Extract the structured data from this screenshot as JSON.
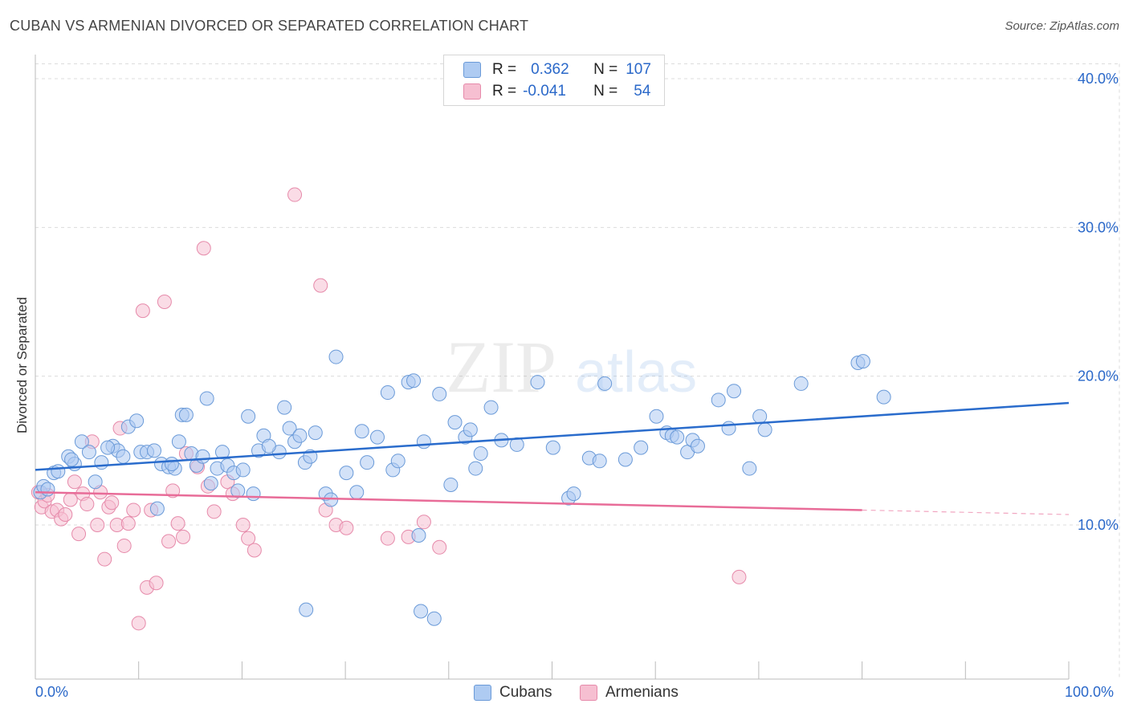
{
  "header": {
    "title": "CUBAN VS ARMENIAN DIVORCED OR SEPARATED CORRELATION CHART",
    "source": "Source: ZipAtlas.com"
  },
  "watermark": {
    "zip": "ZIP",
    "atlas": "atlas"
  },
  "legend": {
    "rows": [
      {
        "r_label": "R =",
        "r_value": "0.362",
        "n_label": "N =",
        "n_value": "107"
      },
      {
        "r_label": "R =",
        "r_value": "-0.041",
        "n_label": "N =",
        "n_value": "54"
      }
    ]
  },
  "bottom_legend": {
    "cubans": "Cubans",
    "armenians": "Armenians"
  },
  "axis_text": {
    "x_min": "0.0%",
    "x_max": "100.0%"
  },
  "colors": {
    "cuban_fill": "#aecbf2",
    "cuban_stroke": "#6a9ad8",
    "cuban_line": "#2a6ccc",
    "armenian_fill": "#f6bfd1",
    "armenian_stroke": "#e68aaa",
    "armenian_line": "#e86c98",
    "tick_label": "#2a68c9",
    "grid": "#dcdcdc"
  },
  "chart_data": {
    "type": "scatter",
    "title": "CUBAN VS ARMENIAN DIVORCED OR SEPARATED CORRELATION CHART",
    "xlabel": "",
    "ylabel": "Divorced or Separated",
    "xlim": [
      0,
      100
    ],
    "ylim": [
      0,
      41
    ],
    "y_ticks": [
      10,
      20,
      30,
      40
    ],
    "y_tick_labels": [
      "10.0%",
      "20.0%",
      "30.0%",
      "40.0%"
    ],
    "grid": true,
    "legend_position": "top-center",
    "series": [
      {
        "name": "Cubans",
        "r": 0.362,
        "n": 107,
        "trend": {
          "x": [
            0,
            100
          ],
          "y": [
            13.7,
            18.2
          ]
        },
        "points": [
          [
            0.5,
            12.2
          ],
          [
            0.8,
            12.6
          ],
          [
            1.2,
            12.4
          ],
          [
            1.8,
            13.5
          ],
          [
            2.2,
            13.6
          ],
          [
            3.2,
            14.6
          ],
          [
            3.8,
            14.1
          ],
          [
            4.5,
            15.6
          ],
          [
            5.2,
            14.9
          ],
          [
            5.8,
            12.9
          ],
          [
            6.4,
            14.2
          ],
          [
            7.5,
            15.3
          ],
          [
            8.0,
            15.0
          ],
          [
            8.5,
            14.6
          ],
          [
            9.0,
            16.6
          ],
          [
            9.8,
            17.0
          ],
          [
            10.2,
            14.9
          ],
          [
            10.8,
            14.9
          ],
          [
            11.5,
            15.0
          ],
          [
            11.8,
            11.1
          ],
          [
            12.2,
            14.1
          ],
          [
            12.9,
            13.9
          ],
          [
            13.5,
            13.8
          ],
          [
            13.9,
            15.6
          ],
          [
            14.2,
            17.4
          ],
          [
            14.6,
            17.4
          ],
          [
            15.1,
            14.8
          ],
          [
            15.6,
            14.0
          ],
          [
            16.2,
            14.6
          ],
          [
            16.6,
            18.5
          ],
          [
            17.0,
            12.8
          ],
          [
            17.6,
            13.8
          ],
          [
            18.1,
            14.9
          ],
          [
            18.6,
            14.0
          ],
          [
            19.2,
            13.5
          ],
          [
            19.6,
            12.3
          ],
          [
            20.1,
            13.7
          ],
          [
            20.6,
            17.3
          ],
          [
            21.1,
            12.1
          ],
          [
            21.6,
            15.0
          ],
          [
            22.1,
            16.0
          ],
          [
            23.6,
            14.9
          ],
          [
            24.1,
            17.9
          ],
          [
            24.6,
            16.5
          ],
          [
            25.1,
            15.6
          ],
          [
            25.6,
            16.0
          ],
          [
            26.1,
            14.2
          ],
          [
            26.6,
            14.6
          ],
          [
            27.1,
            16.2
          ],
          [
            28.1,
            12.1
          ],
          [
            28.6,
            11.7
          ],
          [
            29.1,
            21.3
          ],
          [
            30.1,
            13.5
          ],
          [
            31.1,
            12.2
          ],
          [
            31.6,
            16.3
          ],
          [
            32.1,
            14.2
          ],
          [
            33.1,
            15.9
          ],
          [
            34.1,
            18.9
          ],
          [
            34.6,
            13.7
          ],
          [
            35.1,
            14.3
          ],
          [
            36.1,
            19.6
          ],
          [
            36.6,
            19.7
          ],
          [
            37.1,
            9.3
          ],
          [
            37.6,
            15.6
          ],
          [
            38.6,
            3.7
          ],
          [
            39.1,
            18.8
          ],
          [
            40.6,
            16.9
          ],
          [
            41.6,
            15.9
          ],
          [
            42.1,
            16.4
          ],
          [
            42.6,
            13.8
          ],
          [
            43.1,
            14.8
          ],
          [
            44.1,
            17.9
          ],
          [
            45.1,
            15.7
          ],
          [
            46.6,
            15.4
          ],
          [
            48.6,
            19.6
          ],
          [
            50.1,
            15.2
          ],
          [
            51.6,
            11.8
          ],
          [
            52.1,
            12.1
          ],
          [
            53.6,
            14.5
          ],
          [
            54.6,
            14.3
          ],
          [
            55.1,
            19.5
          ],
          [
            57.1,
            14.4
          ],
          [
            58.6,
            15.2
          ],
          [
            60.1,
            17.3
          ],
          [
            61.1,
            16.2
          ],
          [
            61.6,
            16.0
          ],
          [
            62.1,
            15.9
          ],
          [
            63.1,
            14.9
          ],
          [
            63.6,
            15.7
          ],
          [
            64.1,
            15.3
          ],
          [
            66.1,
            18.4
          ],
          [
            67.1,
            16.5
          ],
          [
            67.6,
            19.0
          ],
          [
            69.1,
            13.8
          ],
          [
            70.1,
            17.3
          ],
          [
            70.6,
            16.4
          ],
          [
            74.1,
            19.5
          ],
          [
            79.6,
            20.9
          ],
          [
            80.1,
            21.0
          ],
          [
            82.1,
            18.6
          ],
          [
            37.3,
            4.2
          ],
          [
            26.2,
            4.3
          ],
          [
            7.0,
            15.2
          ],
          [
            3.5,
            14.4
          ],
          [
            13.2,
            14.1
          ],
          [
            22.6,
            15.3
          ],
          [
            40.2,
            12.7
          ]
        ]
      },
      {
        "name": "Armenians",
        "r": -0.041,
        "n": 54,
        "trend": {
          "x": [
            0,
            80
          ],
          "y": [
            12.2,
            11.0
          ]
        },
        "trend_dashed": {
          "x": [
            80,
            100
          ],
          "y": [
            11.0,
            10.7
          ]
        },
        "points": [
          [
            0.3,
            12.2
          ],
          [
            0.6,
            11.2
          ],
          [
            0.9,
            11.6
          ],
          [
            1.2,
            12.0
          ],
          [
            1.6,
            10.9
          ],
          [
            2.1,
            11.0
          ],
          [
            2.5,
            10.4
          ],
          [
            2.9,
            10.7
          ],
          [
            3.4,
            11.7
          ],
          [
            3.8,
            12.9
          ],
          [
            4.2,
            9.4
          ],
          [
            4.6,
            12.1
          ],
          [
            5.0,
            11.4
          ],
          [
            5.5,
            15.6
          ],
          [
            6.0,
            10.0
          ],
          [
            6.3,
            12.2
          ],
          [
            6.7,
            7.7
          ],
          [
            7.1,
            11.2
          ],
          [
            7.4,
            11.5
          ],
          [
            7.9,
            10.0
          ],
          [
            8.2,
            16.5
          ],
          [
            8.6,
            8.6
          ],
          [
            9.0,
            10.1
          ],
          [
            9.5,
            11.0
          ],
          [
            10.0,
            3.4
          ],
          [
            10.4,
            24.4
          ],
          [
            10.8,
            5.8
          ],
          [
            11.2,
            11.0
          ],
          [
            11.7,
            6.1
          ],
          [
            12.5,
            25.0
          ],
          [
            12.9,
            8.9
          ],
          [
            13.3,
            12.3
          ],
          [
            13.8,
            10.1
          ],
          [
            14.3,
            9.2
          ],
          [
            14.6,
            14.8
          ],
          [
            15.7,
            13.9
          ],
          [
            16.3,
            28.6
          ],
          [
            16.7,
            12.6
          ],
          [
            17.3,
            10.9
          ],
          [
            18.6,
            12.9
          ],
          [
            19.1,
            12.1
          ],
          [
            20.1,
            10.0
          ],
          [
            20.6,
            9.1
          ],
          [
            21.2,
            8.3
          ],
          [
            25.1,
            32.2
          ],
          [
            27.6,
            26.1
          ],
          [
            28.1,
            11.0
          ],
          [
            29.1,
            10.0
          ],
          [
            30.1,
            9.8
          ],
          [
            34.1,
            9.1
          ],
          [
            36.1,
            9.2
          ],
          [
            37.6,
            10.2
          ],
          [
            39.1,
            8.5
          ],
          [
            68.1,
            6.5
          ]
        ]
      }
    ]
  }
}
